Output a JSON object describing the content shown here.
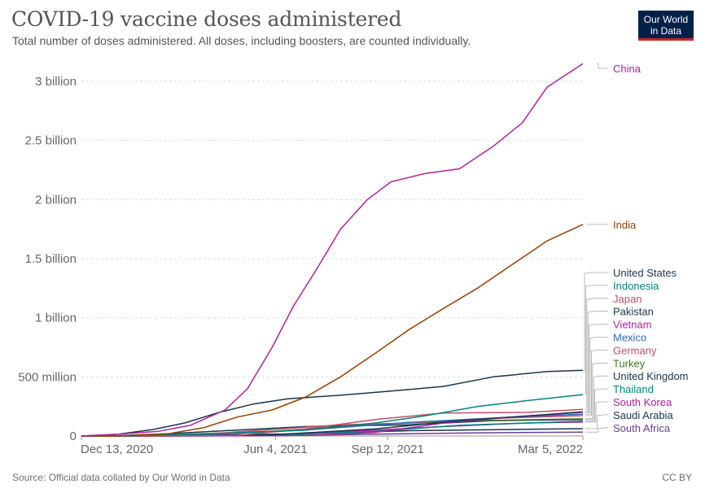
{
  "header": {
    "title": "COVID-19 vaccine doses administered",
    "subtitle": "Total number of doses administered. All doses, including boosters, are counted individually."
  },
  "logo": {
    "line1": "Our World",
    "line2": "in Data",
    "background": "#002147",
    "accent": "#ce261e"
  },
  "footer": {
    "source": "Source: Official data collated by Our World in Data",
    "license": "CC BY"
  },
  "chart_data": {
    "type": "line",
    "title": "COVID-19 vaccine doses administered",
    "subtitle": "Total number of doses administered. All doses, including boosters, are counted individually.",
    "xlabel": "",
    "ylabel": "",
    "x_range": [
      "2020-12-13",
      "2022-03-05"
    ],
    "x_ticks": [
      {
        "date": "2020-12-13",
        "label": "Dec 13, 2020"
      },
      {
        "date": "2021-06-04",
        "label": "Jun 4, 2021"
      },
      {
        "date": "2021-09-12",
        "label": "Sep 12, 2021"
      },
      {
        "date": "2022-03-05",
        "label": "Mar 5, 2022"
      }
    ],
    "ylim": [
      0,
      3200000000
    ],
    "y_ticks": [
      {
        "value": 0,
        "label": "0"
      },
      {
        "value": 500000000,
        "label": "500 million"
      },
      {
        "value": 1000000000,
        "label": "1 billion"
      },
      {
        "value": 1500000000,
        "label": "1.5 billion"
      },
      {
        "value": 2000000000,
        "label": "2 billion"
      },
      {
        "value": 2500000000,
        "label": "2.5 billion"
      },
      {
        "value": 3000000000,
        "label": "3 billion"
      }
    ],
    "grid": "horizontal dashed",
    "legend": "right, end of lines",
    "series": [
      {
        "name": "China",
        "color": "#b0229d",
        "points": [
          [
            "2020-12-13",
            0
          ],
          [
            "2021-01-15",
            15000000
          ],
          [
            "2021-02-20",
            40000000
          ],
          [
            "2021-03-20",
            90000000
          ],
          [
            "2021-04-20",
            220000000
          ],
          [
            "2021-05-10",
            400000000
          ],
          [
            "2021-06-01",
            750000000
          ],
          [
            "2021-06-20",
            1100000000
          ],
          [
            "2021-07-10",
            1400000000
          ],
          [
            "2021-08-01",
            1750000000
          ],
          [
            "2021-08-25",
            2000000000
          ],
          [
            "2021-09-15",
            2150000000
          ],
          [
            "2021-10-15",
            2220000000
          ],
          [
            "2021-11-15",
            2260000000
          ],
          [
            "2021-12-15",
            2450000000
          ],
          [
            "2022-01-10",
            2650000000
          ],
          [
            "2022-02-01",
            2950000000
          ],
          [
            "2022-03-05",
            3150000000
          ]
        ]
      },
      {
        "name": "India",
        "color": "#9c3e00",
        "points": [
          [
            "2020-12-13",
            0
          ],
          [
            "2021-01-16",
            0
          ],
          [
            "2021-03-01",
            20000000
          ],
          [
            "2021-04-01",
            70000000
          ],
          [
            "2021-05-01",
            160000000
          ],
          [
            "2021-06-01",
            220000000
          ],
          [
            "2021-07-01",
            330000000
          ],
          [
            "2021-08-01",
            500000000
          ],
          [
            "2021-09-01",
            700000000
          ],
          [
            "2021-10-01",
            900000000
          ],
          [
            "2021-11-01",
            1080000000
          ],
          [
            "2021-12-01",
            1250000000
          ],
          [
            "2022-01-01",
            1450000000
          ],
          [
            "2022-02-01",
            1650000000
          ],
          [
            "2022-03-05",
            1790000000
          ]
        ]
      },
      {
        "name": "United States",
        "color": "#18354d",
        "points": [
          [
            "2020-12-13",
            0
          ],
          [
            "2021-01-15",
            15000000
          ],
          [
            "2021-02-15",
            55000000
          ],
          [
            "2021-03-15",
            110000000
          ],
          [
            "2021-04-15",
            200000000
          ],
          [
            "2021-05-15",
            270000000
          ],
          [
            "2021-06-15",
            315000000
          ],
          [
            "2021-08-01",
            345000000
          ],
          [
            "2021-09-15",
            380000000
          ],
          [
            "2021-11-01",
            420000000
          ],
          [
            "2021-12-15",
            500000000
          ],
          [
            "2022-02-01",
            545000000
          ],
          [
            "2022-03-05",
            555000000
          ]
        ]
      },
      {
        "name": "Indonesia",
        "color": "#00847e",
        "points": [
          [
            "2020-12-13",
            0
          ],
          [
            "2021-01-13",
            0
          ],
          [
            "2021-04-01",
            15000000
          ],
          [
            "2021-07-01",
            50000000
          ],
          [
            "2021-09-01",
            110000000
          ],
          [
            "2021-10-15",
            170000000
          ],
          [
            "2021-12-01",
            250000000
          ],
          [
            "2022-01-15",
            300000000
          ],
          [
            "2022-03-05",
            350000000
          ]
        ]
      },
      {
        "name": "Japan",
        "color": "#c15065",
        "points": [
          [
            "2020-12-13",
            0
          ],
          [
            "2021-02-17",
            0
          ],
          [
            "2021-05-01",
            5000000
          ],
          [
            "2021-07-01",
            60000000
          ],
          [
            "2021-09-01",
            140000000
          ],
          [
            "2021-11-01",
            195000000
          ],
          [
            "2022-01-15",
            200000000
          ],
          [
            "2022-03-05",
            225000000
          ]
        ]
      },
      {
        "name": "Pakistan",
        "color": "#18354d",
        "points": [
          [
            "2020-12-13",
            0
          ],
          [
            "2021-02-02",
            0
          ],
          [
            "2021-06-01",
            10000000
          ],
          [
            "2021-09-01",
            60000000
          ],
          [
            "2021-11-15",
            130000000
          ],
          [
            "2022-01-15",
            170000000
          ],
          [
            "2022-03-05",
            205000000
          ]
        ]
      },
      {
        "name": "Vietnam",
        "color": "#b0229d",
        "points": [
          [
            "2020-12-13",
            0
          ],
          [
            "2021-03-08",
            0
          ],
          [
            "2021-07-01",
            5000000
          ],
          [
            "2021-09-01",
            30000000
          ],
          [
            "2021-11-01",
            110000000
          ],
          [
            "2022-01-01",
            160000000
          ],
          [
            "2022-03-05",
            200000000
          ]
        ]
      },
      {
        "name": "Mexico",
        "color": "#286bbb",
        "points": [
          [
            "2020-12-13",
            0
          ],
          [
            "2021-01-15",
            500000
          ],
          [
            "2021-04-01",
            10000000
          ],
          [
            "2021-07-01",
            50000000
          ],
          [
            "2021-10-01",
            115000000
          ],
          [
            "2022-01-01",
            160000000
          ],
          [
            "2022-03-05",
            185000000
          ]
        ]
      },
      {
        "name": "Germany",
        "color": "#c15065",
        "points": [
          [
            "2020-12-13",
            0
          ],
          [
            "2021-01-15",
            1000000
          ],
          [
            "2021-04-01",
            15000000
          ],
          [
            "2021-06-01",
            55000000
          ],
          [
            "2021-08-01",
            95000000
          ],
          [
            "2021-10-01",
            110000000
          ],
          [
            "2021-12-15",
            150000000
          ],
          [
            "2022-03-05",
            172000000
          ]
        ]
      },
      {
        "name": "Turkey",
        "color": "#3c7a1f",
        "points": [
          [
            "2020-12-13",
            0
          ],
          [
            "2021-01-14",
            0
          ],
          [
            "2021-03-01",
            10000000
          ],
          [
            "2021-06-01",
            40000000
          ],
          [
            "2021-09-01",
            100000000
          ],
          [
            "2021-12-01",
            130000000
          ],
          [
            "2022-03-05",
            145000000
          ]
        ]
      },
      {
        "name": "United Kingdom",
        "color": "#18354d",
        "points": [
          [
            "2020-12-13",
            0
          ],
          [
            "2021-01-15",
            3000000
          ],
          [
            "2021-03-01",
            20000000
          ],
          [
            "2021-05-01",
            50000000
          ],
          [
            "2021-07-01",
            80000000
          ],
          [
            "2021-10-01",
            95000000
          ],
          [
            "2021-12-15",
            130000000
          ],
          [
            "2022-03-05",
            140000000
          ]
        ]
      },
      {
        "name": "Thailand",
        "color": "#00847e",
        "points": [
          [
            "2020-12-13",
            0
          ],
          [
            "2021-02-28",
            0
          ],
          [
            "2021-06-01",
            5000000
          ],
          [
            "2021-09-01",
            40000000
          ],
          [
            "2021-11-15",
            90000000
          ],
          [
            "2022-01-15",
            110000000
          ],
          [
            "2022-03-05",
            125000000
          ]
        ]
      },
      {
        "name": "South Korea",
        "color": "#b0229d",
        "points": [
          [
            "2020-12-13",
            0
          ],
          [
            "2021-02-26",
            0
          ],
          [
            "2021-06-01",
            10000000
          ],
          [
            "2021-09-01",
            50000000
          ],
          [
            "2021-11-01",
            80000000
          ],
          [
            "2022-01-15",
            110000000
          ],
          [
            "2022-03-05",
            118000000
          ]
        ]
      },
      {
        "name": "Saudi Arabia",
        "color": "#18354d",
        "points": [
          [
            "2020-12-13",
            0
          ],
          [
            "2021-01-15",
            1000000
          ],
          [
            "2021-04-01",
            6000000
          ],
          [
            "2021-07-01",
            20000000
          ],
          [
            "2021-10-01",
            45000000
          ],
          [
            "2022-01-01",
            55000000
          ],
          [
            "2022-03-05",
            62000000
          ]
        ]
      },
      {
        "name": "South Africa",
        "color": "#6d3e91",
        "points": [
          [
            "2020-12-13",
            0
          ],
          [
            "2021-02-17",
            0
          ],
          [
            "2021-06-01",
            2000000
          ],
          [
            "2021-09-01",
            15000000
          ],
          [
            "2021-12-01",
            27000000
          ],
          [
            "2022-03-05",
            33000000
          ]
        ]
      }
    ]
  }
}
